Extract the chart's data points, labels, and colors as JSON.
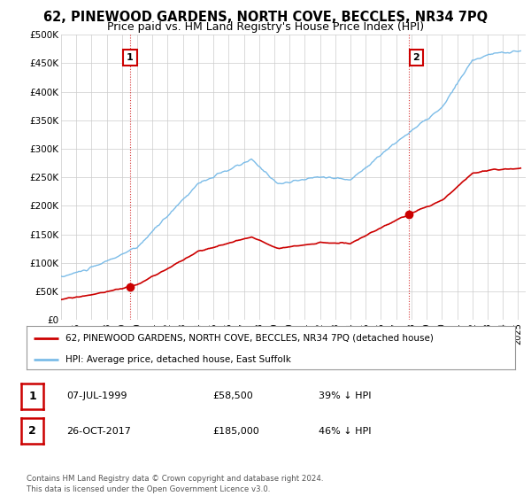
{
  "title": "62, PINEWOOD GARDENS, NORTH COVE, BECCLES, NR34 7PQ",
  "subtitle": "Price paid vs. HM Land Registry's House Price Index (HPI)",
  "ylim": [
    0,
    500000
  ],
  "yticks": [
    0,
    50000,
    100000,
    150000,
    200000,
    250000,
    300000,
    350000,
    400000,
    450000,
    500000
  ],
  "ytick_labels": [
    "£0",
    "£50K",
    "£100K",
    "£150K",
    "£200K",
    "£250K",
    "£300K",
    "£350K",
    "£400K",
    "£450K",
    "£500K"
  ],
  "xlim_start": 1995.0,
  "xlim_end": 2025.5,
  "sale1_date": 1999.52,
  "sale1_price": 58500,
  "sale2_date": 2017.82,
  "sale2_price": 185000,
  "hpi_color": "#7bbce8",
  "price_color": "#cc0000",
  "marker_color": "#cc0000",
  "annotation1_label": "1",
  "annotation2_label": "2",
  "legend_line1": "62, PINEWOOD GARDENS, NORTH COVE, BECCLES, NR34 7PQ (detached house)",
  "legend_line2": "HPI: Average price, detached house, East Suffolk",
  "table_row1": [
    "1",
    "07-JUL-1999",
    "£58,500",
    "39% ↓ HPI"
  ],
  "table_row2": [
    "2",
    "26-OCT-2017",
    "£185,000",
    "46% ↓ HPI"
  ],
  "footnote": "Contains HM Land Registry data © Crown copyright and database right 2024.\nThis data is licensed under the Open Government Licence v3.0.",
  "bg_color": "#ffffff",
  "grid_color": "#cccccc",
  "title_fontsize": 10.5,
  "subtitle_fontsize": 9
}
